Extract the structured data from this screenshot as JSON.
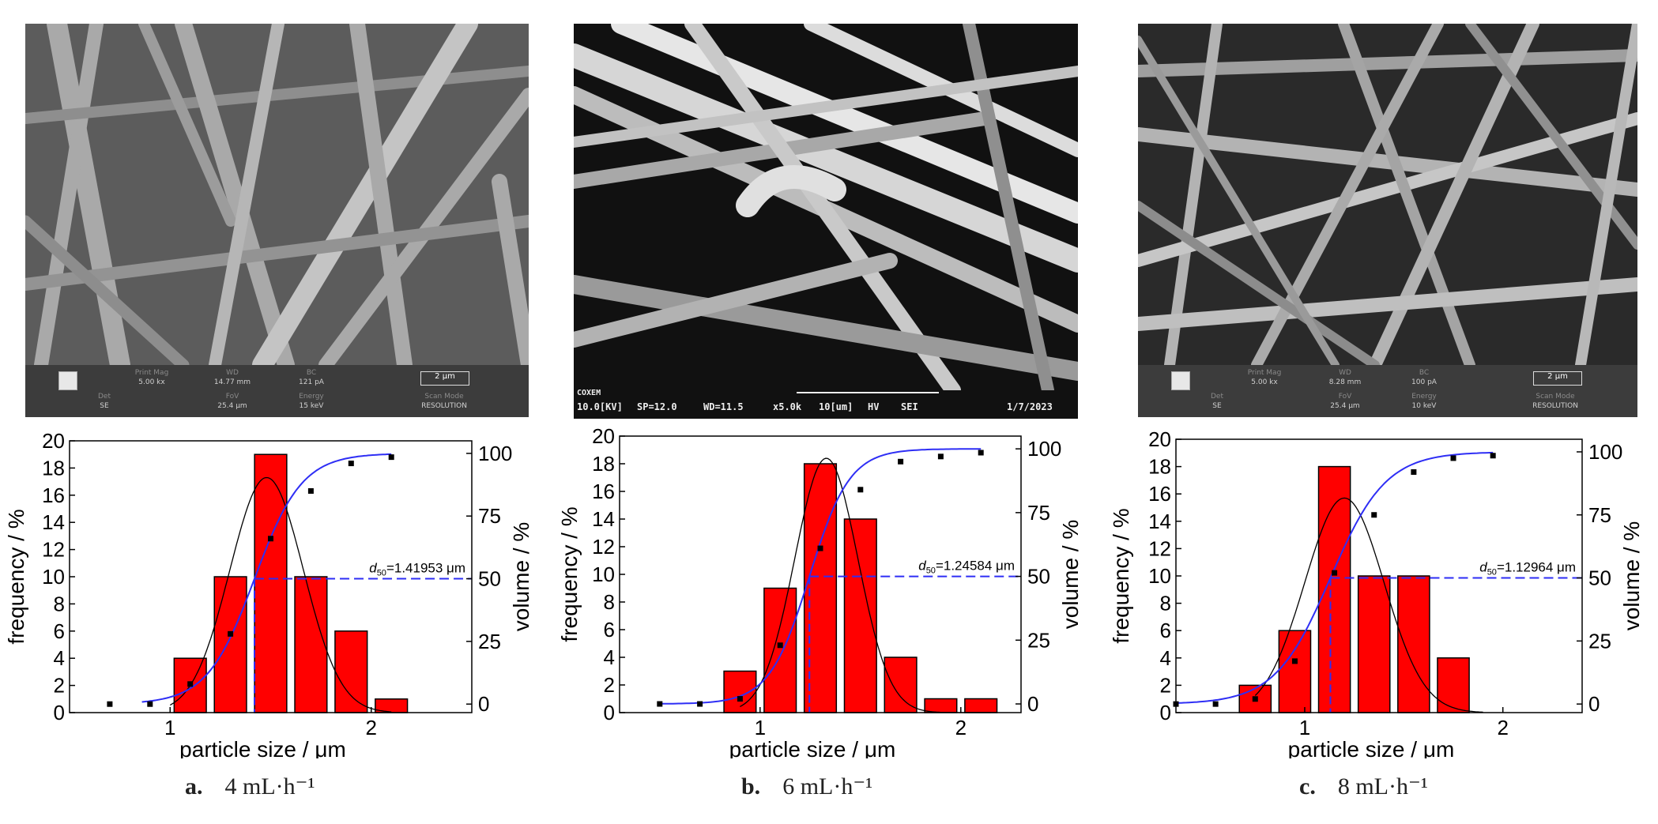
{
  "panels": [
    {
      "caption_letter": "a.",
      "caption_text": "4 mL·h⁻¹",
      "sem_style": "standard",
      "sem_info": {
        "labels": [
          "Print Mag",
          "WD",
          "BC",
          "Det",
          "FoV",
          "Energy",
          "Scan Mode"
        ],
        "values": [
          "5.00 kx",
          "14.77 mm",
          "121 pA",
          "SE",
          "25.4 μm",
          "15 keV",
          "RESOLUTION"
        ],
        "scale": "2 μm"
      }
    },
    {
      "caption_letter": "b.",
      "caption_text": "6 mL·h⁻¹",
      "sem_style": "coxem",
      "sem_info": {
        "brand": "COXEM",
        "line": [
          "10.0[KV]",
          "SP=12.0",
          "WD=11.5",
          "x5.0k",
          "10[um]",
          "HV",
          "SEI",
          "1/7/2023"
        ]
      }
    },
    {
      "caption_letter": "c.",
      "caption_text": "8 mL·h⁻¹",
      "sem_style": "standard",
      "sem_info": {
        "labels": [
          "Print Mag",
          "WD",
          "BC",
          "Det",
          "FoV",
          "Energy",
          "Scan Mode"
        ],
        "values": [
          "5.00 kx",
          "8.28 mm",
          "100 pA",
          "SE",
          "25.4 μm",
          "10 keV",
          "RESOLUTION"
        ],
        "scale": "2 μm"
      }
    }
  ],
  "chart_data": [
    {
      "type": "bar",
      "xlabel": "particle size / μm",
      "ylabel": "frequency / %",
      "y2label": "volume / %",
      "xlim": [
        0.5,
        2.5
      ],
      "xticks": [
        1,
        2
      ],
      "ylim": [
        0,
        20
      ],
      "yticks": [
        0,
        2,
        4,
        6,
        8,
        10,
        12,
        14,
        16,
        18,
        20
      ],
      "y2lim": [
        -3.4,
        105
      ],
      "y2ticks": [
        0,
        25,
        50,
        75,
        100
      ],
      "bars": {
        "x": [
          1.1,
          1.3,
          1.5,
          1.7,
          1.9,
          2.1
        ],
        "values": [
          4,
          10,
          19,
          10,
          6,
          1
        ],
        "width": 0.16,
        "color": "#ff0000"
      },
      "normal_fit": {
        "mean": 1.48,
        "sd": 0.183,
        "peak": 17.3,
        "x_from": 1.0,
        "x_to": 2.1
      },
      "cumulative": {
        "points_x": [
          0.7,
          0.9,
          1.1,
          1.3,
          1.5,
          1.7,
          1.9,
          2.1
        ],
        "points_y": [
          0,
          0,
          8,
          28,
          66,
          85,
          96,
          98.5
        ],
        "fit_mid": 1.41953,
        "fit_k": 0.118,
        "x_from": 0.86,
        "x_to": 2.1,
        "color": "#2e2ef5"
      },
      "d50": {
        "value": 1.41953,
        "label_sym": "d",
        "label_sub": "50",
        "label_val": "=1.41953 μm"
      }
    },
    {
      "type": "bar",
      "xlabel": "particle size / μm",
      "ylabel": "frequency / %",
      "y2label": "volume / %",
      "xlim": [
        0.3,
        2.3
      ],
      "xticks": [
        1,
        2
      ],
      "ylim": [
        0,
        20
      ],
      "yticks": [
        0,
        2,
        4,
        6,
        8,
        10,
        12,
        14,
        16,
        18,
        20
      ],
      "y2lim": [
        -3.4,
        105
      ],
      "y2ticks": [
        0,
        25,
        50,
        75,
        100
      ],
      "bars": {
        "x": [
          0.9,
          1.1,
          1.3,
          1.5,
          1.7,
          1.9,
          2.1
        ],
        "values": [
          3,
          9,
          18,
          14,
          4,
          1,
          1
        ],
        "width": 0.16,
        "color": "#ff0000"
      },
      "normal_fit": {
        "mean": 1.33,
        "sd": 0.157,
        "peak": 18.4,
        "x_from": 0.9,
        "x_to": 2.15
      },
      "cumulative": {
        "points_x": [
          0.5,
          0.7,
          0.9,
          1.1,
          1.3,
          1.5,
          1.7,
          1.9,
          2.1
        ],
        "points_y": [
          0,
          0,
          2,
          23,
          61,
          84,
          95,
          97,
          98.5
        ],
        "fit_mid": 1.24584,
        "fit_k": 0.1,
        "x_from": 0.5,
        "x_to": 2.1,
        "color": "#2e2ef5"
      },
      "d50": {
        "value": 1.24584,
        "label_sym": "d",
        "label_sub": "50",
        "label_val": "=1.24584 μm"
      }
    },
    {
      "type": "bar",
      "xlabel": "particle size / μm",
      "ylabel": "frequency / %",
      "y2label": "volume / %",
      "xlim": [
        0.35,
        2.4
      ],
      "xticks": [
        1,
        2
      ],
      "ylim": [
        0,
        20
      ],
      "yticks": [
        0,
        2,
        4,
        6,
        8,
        10,
        12,
        14,
        16,
        18,
        20
      ],
      "y2lim": [
        -3.4,
        105
      ],
      "y2ticks": [
        0,
        25,
        50,
        75,
        100
      ],
      "bars": {
        "x": [
          0.75,
          0.95,
          1.15,
          1.35,
          1.55,
          1.75
        ],
        "values": [
          2,
          6,
          18,
          10,
          10,
          4
        ],
        "width": 0.16,
        "color": "#ff0000"
      },
      "normal_fit": {
        "mean": 1.2,
        "sd": 0.2,
        "peak": 15.7,
        "x_from": 0.75,
        "x_to": 1.9
      },
      "cumulative": {
        "points_x": [
          0.35,
          0.55,
          0.75,
          0.95,
          1.15,
          1.35,
          1.55,
          1.75,
          1.95
        ],
        "points_y": [
          0,
          0,
          2,
          17,
          52,
          75,
          92,
          97.5,
          98.5
        ],
        "fit_mid": 1.12964,
        "fit_k": 0.14,
        "x_from": 0.35,
        "x_to": 1.95,
        "color": "#2e2ef5"
      },
      "d50": {
        "value": 1.12964,
        "label_sym": "d",
        "label_sub": "50",
        "label_val": "=1.12964 μm"
      }
    }
  ]
}
